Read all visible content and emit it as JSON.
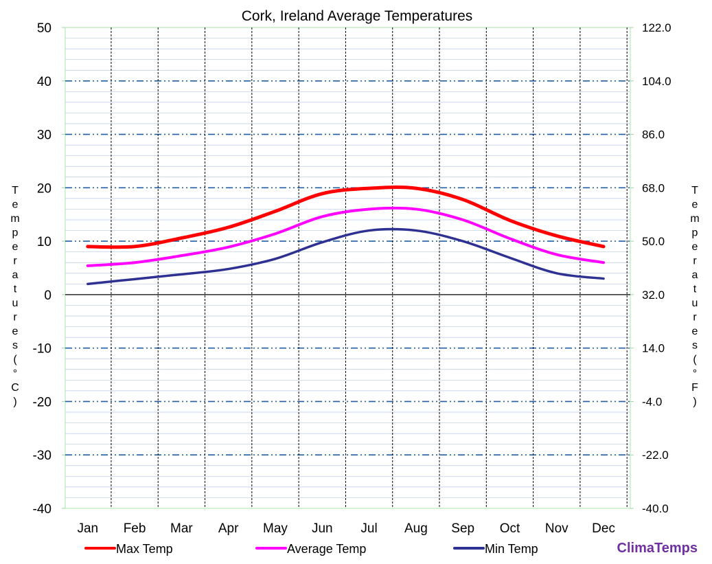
{
  "chart_data": {
    "type": "line",
    "title": "Cork, Ireland Average Temperatures",
    "categories": [
      "Jan",
      "Feb",
      "Mar",
      "Apr",
      "May",
      "Jun",
      "Jul",
      "Aug",
      "Sep",
      "Oct",
      "Nov",
      "Dec"
    ],
    "series": [
      {
        "name": "Max Temp",
        "color": "#ff0000",
        "values": [
          9,
          9,
          10.6,
          12.6,
          15.6,
          18.9,
          19.9,
          19.9,
          17.8,
          13.9,
          11,
          9
        ]
      },
      {
        "name": "Average Temp",
        "color": "#ff00ff",
        "values": [
          5.4,
          6,
          7.3,
          8.9,
          11.4,
          14.6,
          16,
          16,
          14,
          10.5,
          7.5,
          6
        ]
      },
      {
        "name": "Min Temp",
        "color": "#2e3192",
        "values": [
          2,
          2.9,
          3.8,
          4.8,
          6.7,
          9.8,
          12,
          12,
          10,
          6.9,
          4,
          3
        ]
      }
    ],
    "ylabel": "Temperatures (°C)",
    "y2label": "Temperatures (°F)",
    "ylim": [
      -40,
      50
    ],
    "y2lim": [
      -40,
      122
    ],
    "yticks": [
      "50",
      "40",
      "30",
      "20",
      "10",
      "0",
      "-10",
      "-20",
      "-30",
      "-40"
    ],
    "y2ticks": [
      "122.0",
      "104.0",
      "86.0",
      "68.0",
      "50.0",
      "32.0",
      "14.0",
      "-4.0",
      "-22.0",
      "-40.0"
    ],
    "grid": true,
    "legend": "bottom"
  },
  "brand": "ClimaTemps"
}
